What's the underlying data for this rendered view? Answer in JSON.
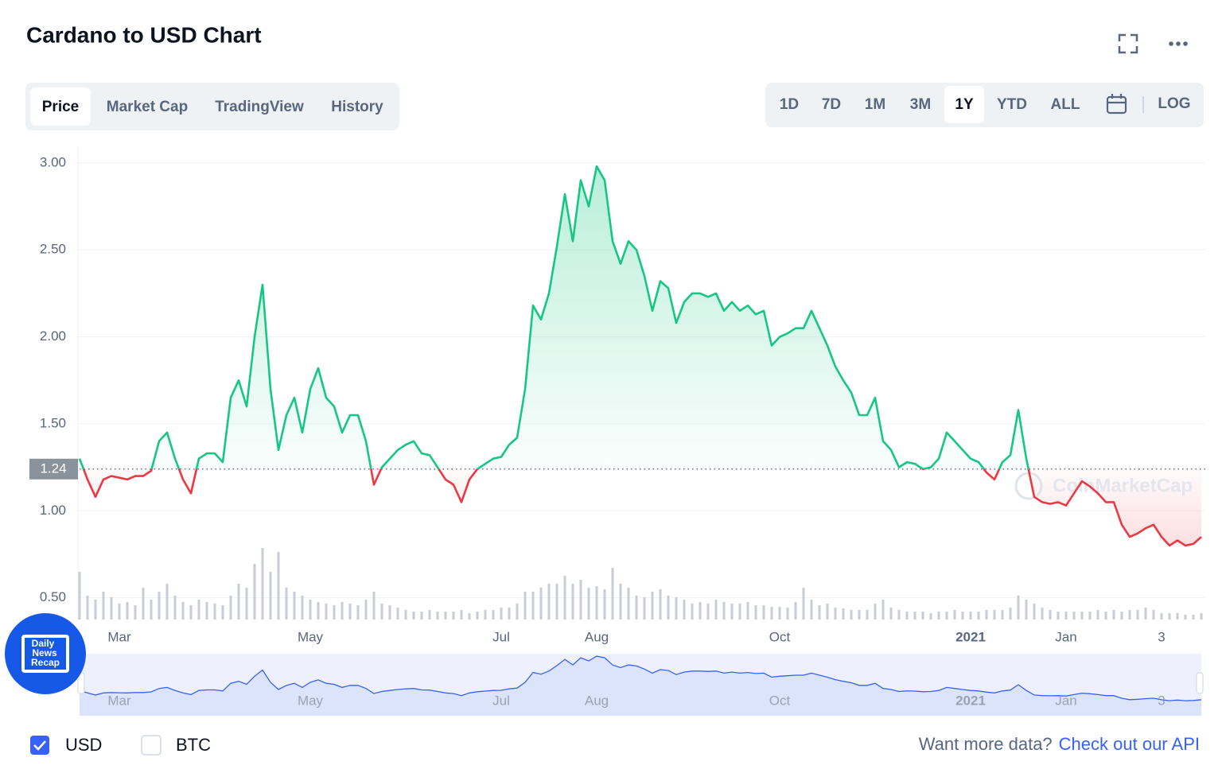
{
  "header": {
    "title": "Cardano to USD Chart"
  },
  "tabs": [
    "Price",
    "Market Cap",
    "TradingView",
    "History"
  ],
  "ranges": [
    "1D",
    "7D",
    "1M",
    "3M",
    "1Y",
    "YTD",
    "ALL"
  ],
  "log_button": "LOG",
  "chart_data": {
    "type": "line",
    "color": "#16c784",
    "down_color": "#ea3943",
    "categories": [
      null,
      null,
      null,
      null,
      null,
      "Mar",
      null,
      null,
      null,
      null,
      null,
      null,
      null,
      null,
      null,
      null,
      null,
      null,
      null,
      null,
      null,
      null,
      null,
      null,
      null,
      null,
      null,
      null,
      null,
      "May",
      null,
      null,
      null,
      null,
      null,
      null,
      null,
      null,
      null,
      null,
      null,
      null,
      null,
      null,
      null,
      null,
      null,
      null,
      null,
      null,
      null,
      null,
      null,
      "Jul",
      null,
      null,
      null,
      null,
      null,
      null,
      null,
      null,
      null,
      null,
      null,
      "Aug",
      null,
      null,
      null,
      null,
      null,
      null,
      null,
      null,
      null,
      null,
      null,
      null,
      null,
      null,
      null,
      null,
      null,
      null,
      null,
      null,
      null,
      null,
      "Oct",
      null,
      null,
      null,
      null,
      null,
      null,
      null,
      null,
      null,
      null,
      null,
      null,
      null,
      null,
      null,
      null,
      null,
      null,
      null,
      null,
      null,
      null,
      null,
      "2021",
      null,
      null,
      null,
      null,
      null,
      null,
      null,
      null,
      null,
      null,
      null,
      "Jan",
      null,
      null,
      null,
      null,
      null,
      null,
      null,
      null,
      null,
      null,
      null,
      "3",
      null,
      null,
      null,
      null,
      null
    ],
    "values": [
      1.3,
      1.18,
      1.08,
      1.18,
      1.2,
      1.19,
      1.18,
      1.2,
      1.2,
      1.23,
      1.4,
      1.45,
      1.3,
      1.18,
      1.1,
      1.3,
      1.33,
      1.33,
      1.28,
      1.65,
      1.75,
      1.6,
      2.0,
      2.3,
      1.7,
      1.35,
      1.55,
      1.65,
      1.45,
      1.7,
      1.82,
      1.65,
      1.6,
      1.45,
      1.55,
      1.55,
      1.4,
      1.15,
      1.25,
      1.3,
      1.35,
      1.38,
      1.4,
      1.33,
      1.32,
      1.25,
      1.18,
      1.15,
      1.05,
      1.18,
      1.24,
      1.27,
      1.3,
      1.31,
      1.38,
      1.42,
      1.7,
      2.18,
      2.1,
      2.25,
      2.52,
      2.82,
      2.55,
      2.9,
      2.75,
      2.98,
      2.9,
      2.55,
      2.42,
      2.55,
      2.5,
      2.35,
      2.15,
      2.32,
      2.28,
      2.08,
      2.2,
      2.25,
      2.25,
      2.23,
      2.25,
      2.15,
      2.2,
      2.15,
      2.18,
      2.13,
      2.15,
      1.95,
      2.0,
      2.02,
      2.05,
      2.05,
      2.15,
      2.05,
      1.95,
      1.83,
      1.75,
      1.68,
      1.55,
      1.55,
      1.65,
      1.4,
      1.35,
      1.25,
      1.28,
      1.27,
      1.24,
      1.25,
      1.3,
      1.45,
      1.4,
      1.35,
      1.3,
      1.28,
      1.22,
      1.18,
      1.28,
      1.32,
      1.58,
      1.3,
      1.08,
      1.05,
      1.04,
      1.05,
      1.03,
      1.1,
      1.17,
      1.14,
      1.1,
      1.05,
      1.05,
      0.92,
      0.85,
      0.87,
      0.9,
      0.92,
      0.85,
      0.8,
      0.83,
      0.8,
      0.81,
      0.85
    ],
    "volume": [
      60,
      30,
      25,
      35,
      28,
      20,
      22,
      18,
      40,
      25,
      35,
      45,
      30,
      22,
      18,
      25,
      22,
      20,
      18,
      30,
      45,
      40,
      70,
      90,
      60,
      85,
      40,
      35,
      30,
      25,
      22,
      20,
      18,
      22,
      20,
      18,
      25,
      35,
      20,
      18,
      15,
      12,
      10,
      10,
      12,
      10,
      10,
      10,
      12,
      8,
      10,
      12,
      12,
      15,
      15,
      20,
      35,
      35,
      40,
      45,
      45,
      55,
      45,
      50,
      40,
      42,
      38,
      65,
      45,
      40,
      30,
      28,
      35,
      38,
      30,
      28,
      25,
      20,
      22,
      20,
      25,
      22,
      20,
      20,
      22,
      18,
      18,
      16,
      16,
      15,
      22,
      40,
      25,
      18,
      20,
      15,
      14,
      12,
      12,
      12,
      20,
      25,
      15,
      12,
      10,
      10,
      10,
      8,
      10,
      10,
      12,
      10,
      10,
      10,
      12,
      12,
      12,
      15,
      30,
      25,
      20,
      15,
      12,
      10,
      10,
      10,
      10,
      10,
      12,
      10,
      12,
      10,
      12,
      12,
      15,
      12,
      8,
      8,
      8,
      6,
      6,
      8
    ],
    "ylim": [
      0.375,
      3.1
    ],
    "yticks": [
      {
        "value": 0.5,
        "label": "0.50"
      },
      {
        "value": 1,
        "label": "1.00"
      },
      {
        "value": 1.5,
        "label": "1.50"
      },
      {
        "value": 2,
        "label": "2.00"
      },
      {
        "value": 2.5,
        "label": "2.50"
      },
      {
        "value": 3,
        "label": "3.00"
      }
    ],
    "grid": true,
    "reference": {
      "value": 1.24,
      "label": "1.24"
    },
    "watermark": "CoinMarketCap"
  },
  "currency_options": [
    "USD",
    "BTC"
  ],
  "footer": {
    "prompt": "Want more data?",
    "link": "Check out our API"
  },
  "badge": [
    "Daily",
    "News",
    "Recap"
  ]
}
